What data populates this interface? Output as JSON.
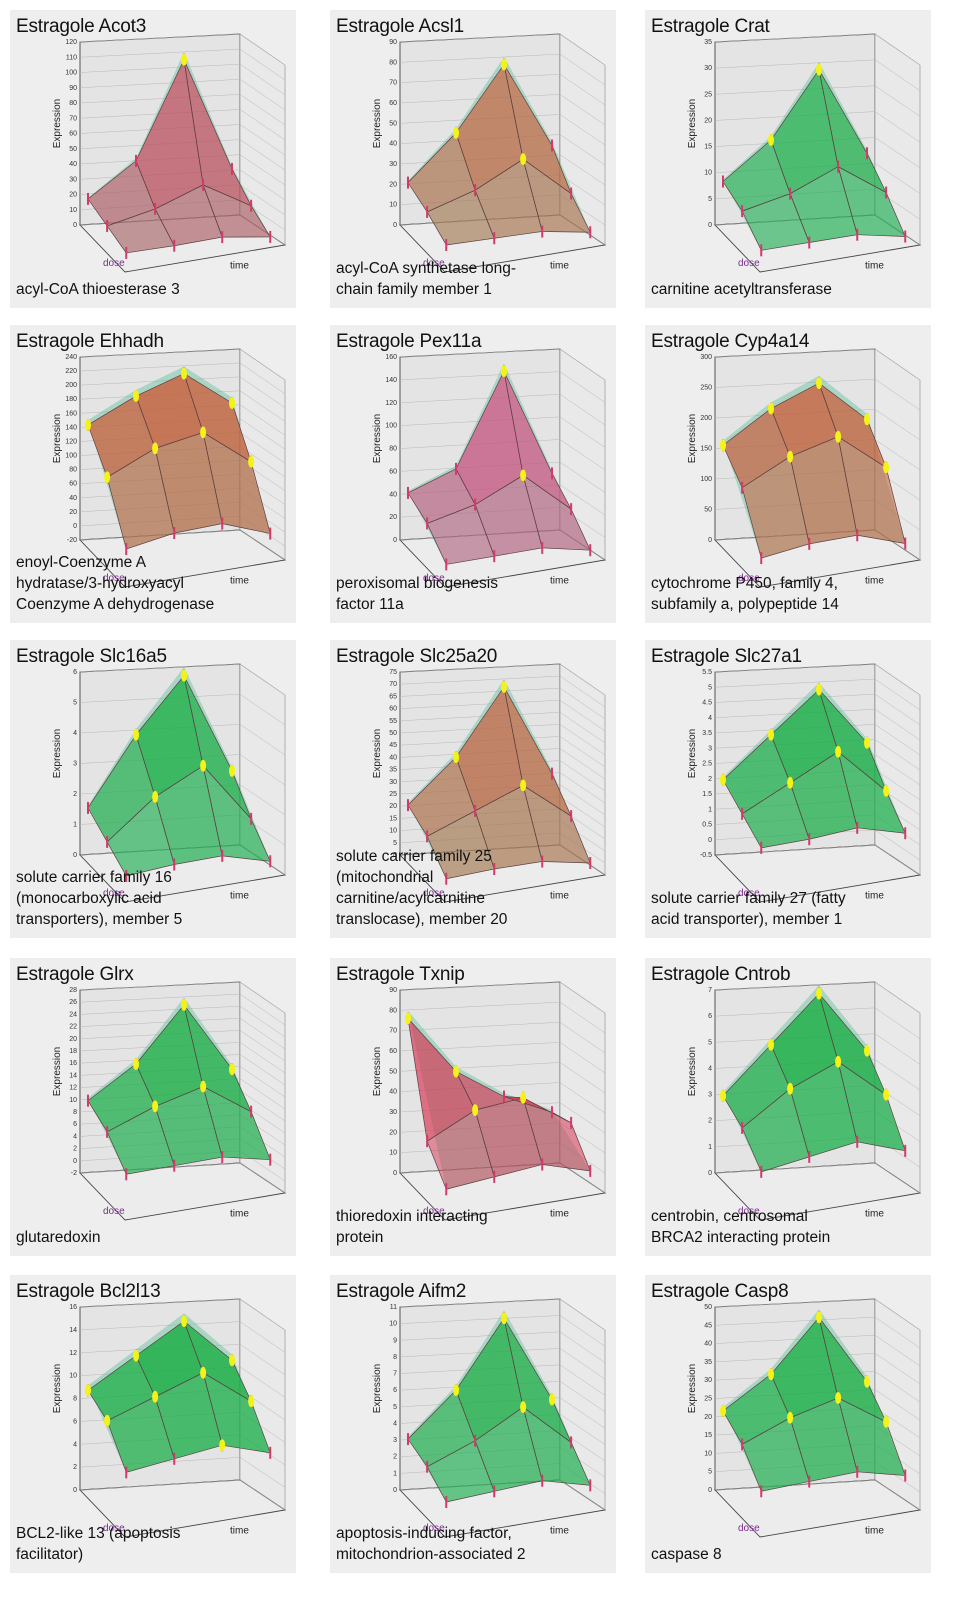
{
  "chart_data": [
    {
      "type": "surface3d",
      "title": "Estragole Acot3",
      "description": [
        "acyl-CoA thioesterase 3"
      ],
      "zlabel": "Expression",
      "xlabel": "time",
      "ylabel": "dose",
      "zticks": [
        "0",
        "10",
        "20",
        "30",
        "40",
        "50",
        "60",
        "70",
        "80",
        "90",
        "100",
        "110",
        "120"
      ],
      "zlim": [
        0,
        120
      ],
      "surface": [
        [
          5,
          8,
          12,
          10
        ],
        [
          10,
          20,
          35,
          18
        ],
        [
          15,
          40,
          110,
          30
        ]
      ],
      "color": "red"
    },
    {
      "type": "surface3d",
      "title": "Estragole Acsl1",
      "description": [
        "acyl-CoA synthetase long-",
        "chain family member 1"
      ],
      "zlabel": "Expression",
      "xlabel": "time",
      "ylabel": "dose",
      "zticks": [
        "0",
        "10",
        "20",
        "30",
        "40",
        "50",
        "60",
        "70",
        "80",
        "90"
      ],
      "zlim": [
        0,
        90
      ],
      "surface": [
        [
          8,
          10,
          12,
          10
        ],
        [
          15,
          25,
          40,
          20
        ],
        [
          20,
          45,
          80,
          35
        ]
      ],
      "color": "orange"
    },
    {
      "type": "surface3d",
      "title": "Estragole Crat",
      "description": [
        "carnitine acetyltransferase"
      ],
      "zlabel": "Expression",
      "xlabel": "time",
      "ylabel": "dose",
      "zticks": [
        "0",
        "5",
        "10",
        "15",
        "20",
        "25",
        "30",
        "35"
      ],
      "zlim": [
        0,
        35
      ],
      "surface": [
        [
          2,
          3,
          4,
          3
        ],
        [
          6,
          9,
          14,
          8
        ],
        [
          8,
          16,
          30,
          12
        ]
      ],
      "color": "green"
    },
    {
      "type": "surface3d",
      "title": "Estragole Ehhadh",
      "description": [
        "enoyl-Coenzyme A",
        "hydratase/3-hydroxyacyl",
        "Coenzyme A dehydrogenase"
      ],
      "zlabel": "Expression",
      "xlabel": "time",
      "ylabel": "dose",
      "zticks": [
        "-20",
        "0",
        "20",
        "40",
        "60",
        "80",
        "100",
        "120",
        "140",
        "160",
        "180",
        "200",
        "220",
        "240"
      ],
      "zlim": [
        -20,
        240
      ],
      "surface": [
        [
          20,
          40,
          50,
          30
        ],
        [
          100,
          140,
          160,
          110
        ],
        [
          150,
          190,
          220,
          170
        ]
      ],
      "color": "orange"
    },
    {
      "type": "surface3d",
      "title": "Estragole Pex11a",
      "description": [
        "peroxisomal biogenesis",
        "factor 11a"
      ],
      "zlabel": "Expression",
      "xlabel": "time",
      "ylabel": "dose",
      "zticks": [
        "0",
        "20",
        "40",
        "60",
        "80",
        "100",
        "120",
        "140",
        "160"
      ],
      "zlim": [
        0,
        160
      ],
      "surface": [
        [
          10,
          15,
          20,
          15
        ],
        [
          30,
          45,
          70,
          35
        ],
        [
          40,
          60,
          150,
          50
        ]
      ],
      "color": "pink"
    },
    {
      "type": "surface3d",
      "title": "Estragole Cyp4a14",
      "description": [
        "cytochrome P450, family 4,",
        "subfamily a, polypeptide 14"
      ],
      "zlabel": "Expression",
      "xlabel": "time",
      "ylabel": "dose",
      "zticks": [
        "0",
        "50",
        "100",
        "150",
        "200",
        "250",
        "300"
      ],
      "zlim": [
        0,
        300
      ],
      "surface": [
        [
          30,
          50,
          60,
          40
        ],
        [
          120,
          170,
          200,
          140
        ],
        [
          160,
          220,
          260,
          190
        ]
      ],
      "color": "orange"
    },
    {
      "type": "surface3d",
      "title": "Estragole Slc16a5",
      "description": [
        "solute carrier family 16",
        "(monocarboxylic acid",
        "transporters), member 5"
      ],
      "zlabel": "Expression",
      "xlabel": "time",
      "ylabel": "dose",
      "zticks": [
        "0",
        "1",
        "2",
        "3",
        "4",
        "5",
        "6"
      ],
      "zlim": [
        0,
        6
      ],
      "surface": [
        [
          0.5,
          0.8,
          1.0,
          0.7
        ],
        [
          1.0,
          2.5,
          3.5,
          1.5
        ],
        [
          1.5,
          4.0,
          6.0,
          2.5
        ]
      ],
      "color": "green"
    },
    {
      "type": "surface3d",
      "title": "Estragole Slc25a20",
      "description": [
        "solute carrier family 25",
        "(mitochondrial",
        "carnitine/acylcarnitine",
        "translocase), member 20"
      ],
      "zlabel": "Expression",
      "xlabel": "time",
      "ylabel": "dose",
      "zticks": [
        "0",
        "5",
        "10",
        "15",
        "20",
        "25",
        "30",
        "35",
        "40",
        "45",
        "50",
        "55",
        "60",
        "65",
        "70",
        "75"
      ],
      "zlim": [
        0,
        75
      ],
      "surface": [
        [
          5,
          8,
          10,
          8
        ],
        [
          15,
          25,
          35,
          20
        ],
        [
          20,
          40,
          70,
          30
        ]
      ],
      "color": "orange"
    },
    {
      "type": "surface3d",
      "title": "Estragole Slc27a1",
      "description": [
        "solute carrier family 27 (fatty",
        "acid transporter), member 1"
      ],
      "zlabel": "Expression",
      "xlabel": "time",
      "ylabel": "dose",
      "zticks": [
        "-0.5",
        "0",
        "0.5",
        "1",
        "1.5",
        "2",
        "2.5",
        "3",
        "3.5",
        "4",
        "4.5",
        "5",
        "5.5"
      ],
      "zlim": [
        -0.5,
        5.5
      ],
      "surface": [
        [
          1.0,
          1.2,
          1.5,
          1.2
        ],
        [
          1.5,
          2.5,
          3.5,
          2.0
        ],
        [
          2.0,
          3.5,
          5.0,
          3.0
        ]
      ],
      "color": "green"
    },
    {
      "type": "surface3d",
      "title": "Estragole Glrx",
      "description": [
        "glutaredoxin"
      ],
      "zlabel": "Expression",
      "xlabel": "time",
      "ylabel": "dose",
      "zticks": [
        "-2",
        "0",
        "2",
        "4",
        "6",
        "8",
        "10",
        "12",
        "14",
        "16",
        "18",
        "20",
        "22",
        "24",
        "26",
        "28"
      ],
      "zlim": [
        -2,
        28
      ],
      "surface": [
        [
          4,
          5,
          6,
          5
        ],
        [
          8,
          12,
          15,
          10
        ],
        [
          10,
          16,
          26,
          14
        ]
      ],
      "color": "green"
    },
    {
      "type": "surface3d",
      "title": "Estragole Txnip",
      "description": [
        "thioredoxin interacting",
        "protein"
      ],
      "zlabel": "Expression",
      "xlabel": "time",
      "ylabel": "dose",
      "zticks": [
        "0",
        "10",
        "20",
        "30",
        "40",
        "50",
        "60",
        "70",
        "80",
        "90"
      ],
      "zlim": [
        0,
        90
      ],
      "surface": [
        [
          10,
          15,
          20,
          15
        ],
        [
          25,
          40,
          45,
          30
        ],
        [
          80,
          50,
          35,
          25
        ]
      ],
      "color": "red"
    },
    {
      "type": "surface3d",
      "title": "Estragole Cntrob",
      "description": [
        "centrobin, centrosomal",
        "BRCA2 interacting protein"
      ],
      "zlabel": "Expression",
      "xlabel": "time",
      "ylabel": "dose",
      "zticks": [
        "0",
        "1",
        "2",
        "3",
        "4",
        "5",
        "6",
        "7"
      ],
      "zlim": [
        0,
        7
      ],
      "surface": [
        [
          1.5,
          2.0,
          2.5,
          2.0
        ],
        [
          2.5,
          4.0,
          5.0,
          3.5
        ],
        [
          3.0,
          5.0,
          7.0,
          4.5
        ]
      ],
      "color": "green"
    },
    {
      "type": "surface3d",
      "title": "Estragole Bcl2l13",
      "description": [
        "BCL2-like 13 (apoptosis",
        "facilitator)"
      ],
      "zlabel": "Expression",
      "xlabel": "time",
      "ylabel": "dose",
      "zticks": [
        "0",
        "2",
        "4",
        "6",
        "8",
        "10",
        "12",
        "14",
        "16"
      ],
      "zlim": [
        0,
        16
      ],
      "surface": [
        [
          5,
          6,
          7,
          6
        ],
        [
          8,
          10,
          12,
          9
        ],
        [
          9,
          12,
          15,
          11
        ]
      ],
      "color": "green"
    },
    {
      "type": "surface3d",
      "title": "Estragole Aifm2",
      "description": [
        "apoptosis-inducing factor,",
        "mitochondrion-associated 2"
      ],
      "zlabel": "Expression",
      "xlabel": "time",
      "ylabel": "dose",
      "zticks": [
        "0",
        "1",
        "2",
        "3",
        "4",
        "5",
        "6",
        "7",
        "8",
        "9",
        "10",
        "11"
      ],
      "zlim": [
        0,
        11
      ],
      "surface": [
        [
          1.5,
          2.0,
          2.5,
          2.0
        ],
        [
          2.5,
          4.0,
          6.0,
          3.5
        ],
        [
          3.0,
          6.0,
          10.5,
          5.0
        ]
      ],
      "color": "green"
    },
    {
      "type": "surface3d",
      "title": "Estragole Casp8",
      "description": [
        "caspase 8"
      ],
      "zlabel": "Expression",
      "xlabel": "time",
      "ylabel": "dose",
      "zticks": [
        "0",
        "5",
        "10",
        "15",
        "20",
        "25",
        "30",
        "35",
        "40",
        "45",
        "50"
      ],
      "zlim": [
        0,
        50
      ],
      "surface": [
        [
          10,
          12,
          14,
          12
        ],
        [
          18,
          25,
          30,
          22
        ],
        [
          22,
          32,
          48,
          28
        ]
      ],
      "color": "green"
    }
  ],
  "colors": {
    "red": "#d9304f",
    "orange": "#cd5a36",
    "pink": "#de3f7c",
    "green": "#12ac3c",
    "halo": "#3fb889",
    "marker": "#d23a6b",
    "highlight": "#f3f318",
    "panel_bg": "#eeeeee"
  }
}
